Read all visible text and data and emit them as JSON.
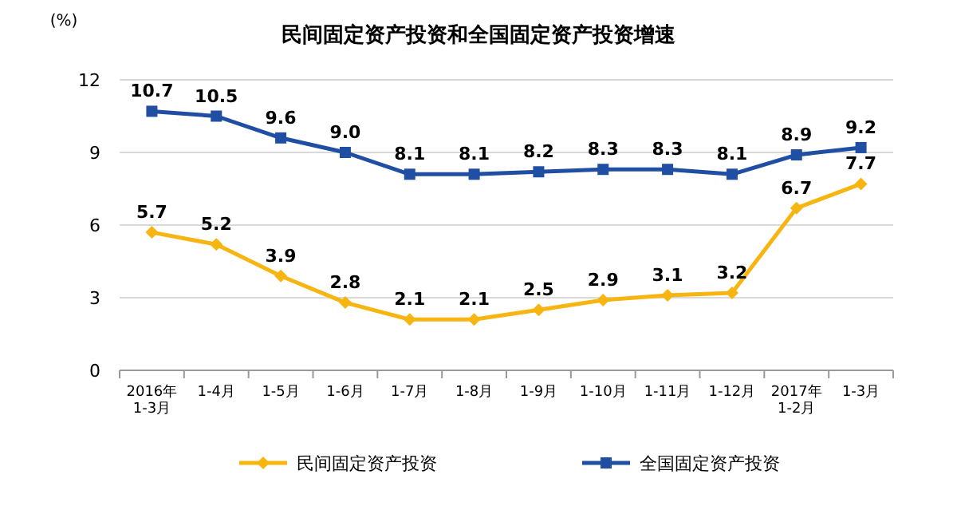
{
  "chart_data": {
    "type": "line",
    "title": "民间固定资产投资和全国固定资产投资增速",
    "ylabel": "(%)",
    "categories": [
      "2016年\n1-3月",
      "1-4月",
      "1-5月",
      "1-6月",
      "1-7月",
      "1-8月",
      "1-9月",
      "1-10月",
      "1-11月",
      "1-12月",
      "2017年\n1-2月",
      "1-3月"
    ],
    "series": [
      {
        "name": "民间固定资产投资",
        "color": "#f7b512",
        "marker": "diamond",
        "values": [
          5.7,
          5.2,
          3.9,
          2.8,
          2.1,
          2.1,
          2.5,
          2.9,
          3.1,
          3.2,
          6.7,
          7.7
        ],
        "value_labels": [
          "5.7",
          "5.2",
          "3.9",
          "2.8",
          "2.1",
          "2.1",
          "2.5",
          "2.9",
          "3.1",
          "3.2",
          "6.7",
          "7.7"
        ]
      },
      {
        "name": "全国固定资产投资",
        "color": "#1f4ea3",
        "marker": "square",
        "values": [
          10.7,
          10.5,
          9.6,
          9.0,
          8.1,
          8.1,
          8.2,
          8.3,
          8.3,
          8.1,
          8.9,
          9.2
        ],
        "value_labels": [
          "10.7",
          "10.5",
          "9.6",
          "9.0",
          "8.1",
          "8.1",
          "8.2",
          "8.3",
          "8.3",
          "8.1",
          "8.9",
          "9.2"
        ]
      }
    ],
    "ylim": [
      0,
      12
    ],
    "yticks": [
      0,
      3,
      6,
      9,
      12
    ],
    "grid": "y",
    "legend": "bottom"
  }
}
